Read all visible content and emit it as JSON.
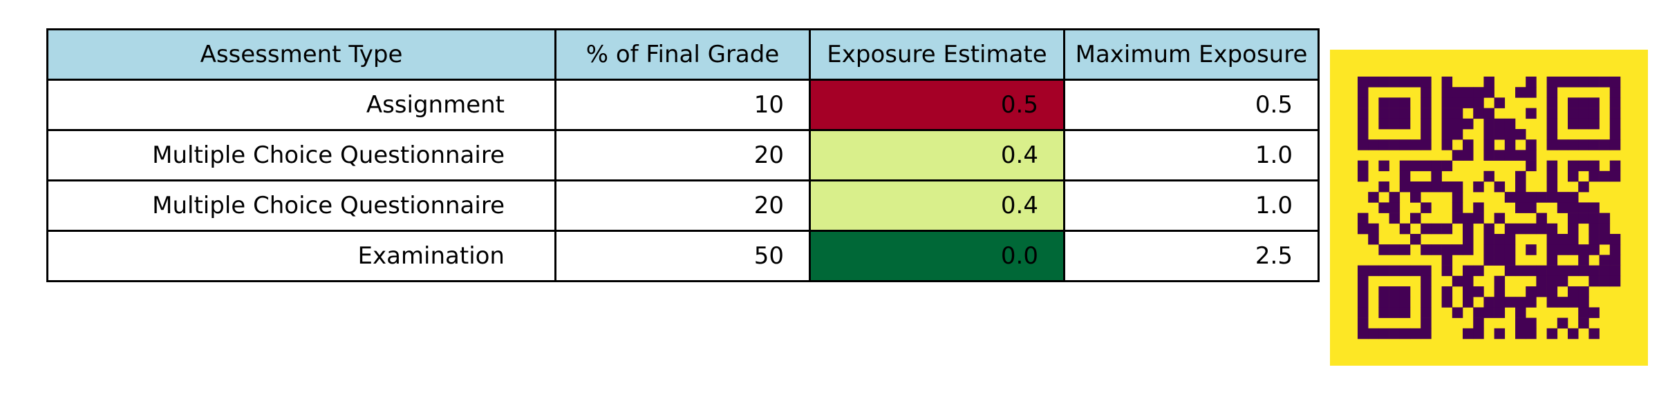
{
  "chart_data": {
    "type": "table",
    "columns": [
      "Assessment Type",
      "% of Final Grade",
      "Exposure Estimate",
      "Maximum Exposure"
    ],
    "rows": [
      {
        "type": "Assignment",
        "grade": "10",
        "exposure": "0.5",
        "max": "0.5"
      },
      {
        "type": "Multiple Choice Questionnaire",
        "grade": "20",
        "exposure": "0.4",
        "max": "1.0"
      },
      {
        "type": "Multiple Choice Questionnaire",
        "grade": "20",
        "exposure": "0.4",
        "max": "1.0"
      },
      {
        "type": "Examination",
        "grade": "50",
        "exposure": "0.0",
        "max": "2.5"
      }
    ],
    "exposure_colors": [
      "#a50026",
      "#d9ef8b",
      "#d9ef8b",
      "#006837"
    ],
    "header_color": "#add8e6"
  },
  "qr_code": {
    "background_color": "#fde725",
    "module_color": "#440154"
  }
}
